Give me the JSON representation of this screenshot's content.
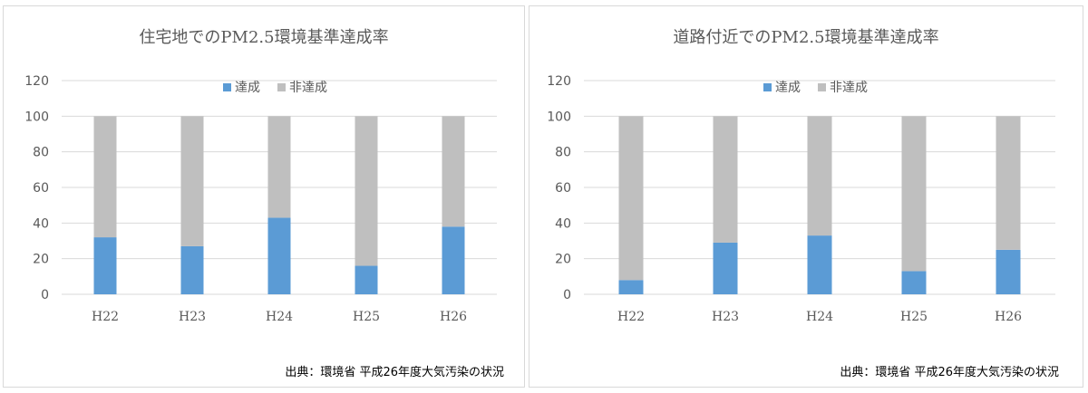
{
  "colors": {
    "achieved": "#5b9bd5",
    "not_achieved": "#bfbfbf",
    "grid": "#d9d9d9",
    "text": "#595959"
  },
  "chart_data": [
    {
      "type": "bar",
      "stacked": true,
      "title": "住宅地でのPM2.5環境基準達成率",
      "categories": [
        "H22",
        "H23",
        "H24",
        "H25",
        "H26"
      ],
      "series": [
        {
          "name": "達成",
          "values": [
            32,
            27,
            43,
            16,
            38
          ]
        },
        {
          "name": "非達成",
          "values": [
            68,
            73,
            57,
            84,
            62
          ]
        }
      ],
      "yticks": [
        0,
        20,
        40,
        60,
        80,
        100,
        120
      ],
      "ylim": [
        0,
        120
      ],
      "grid": true,
      "legend": "top-center",
      "source": "出典：環境省 平成26年度大気汚染の状況"
    },
    {
      "type": "bar",
      "stacked": true,
      "title": "道路付近でのPM2.5環境基準達成率",
      "categories": [
        "H22",
        "H23",
        "H24",
        "H25",
        "H26"
      ],
      "series": [
        {
          "name": "達成",
          "values": [
            8,
            29,
            33,
            13,
            25
          ]
        },
        {
          "name": "非達成",
          "values": [
            92,
            71,
            67,
            87,
            75
          ]
        }
      ],
      "yticks": [
        0,
        20,
        40,
        60,
        80,
        100,
        120
      ],
      "ylim": [
        0,
        120
      ],
      "grid": true,
      "legend": "top-center",
      "source": "出典：環境省 平成26年度大気汚染の状況"
    }
  ]
}
